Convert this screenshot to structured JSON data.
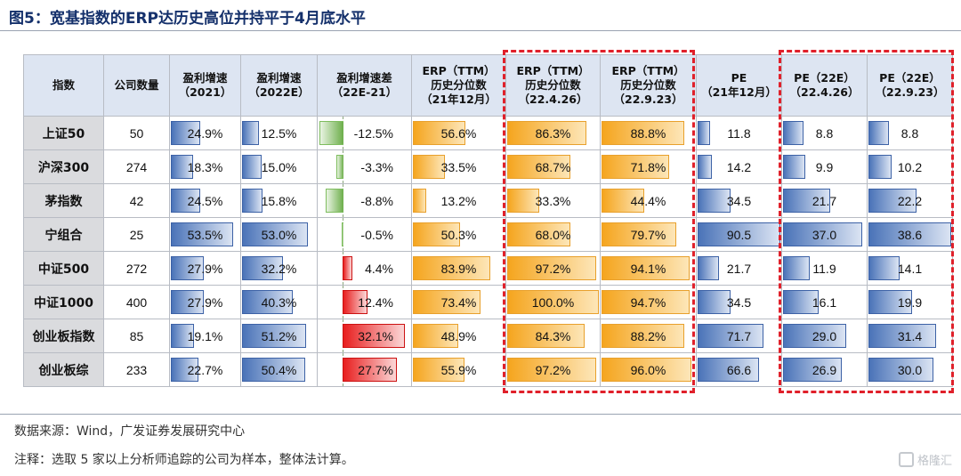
{
  "title": "图5：宽基指数的ERP达历史高位并持平于4月底水平",
  "source": "数据来源：Wind，广发证券发展研究中心",
  "footnote": "注释：选取 5 家以上分析师追踪的公司为样本，整体法计算。",
  "watermark": "格隆汇",
  "colors": {
    "title": "#14306b",
    "blue_bar": "#4a73b8",
    "orange_bar": "#f5a51e",
    "red_bar": "#e81e1e",
    "green_bar": "#6cae4a",
    "highlight_box": "#e0202a",
    "header_bg": "#dde5f2",
    "index_bg": "#dadbde"
  },
  "chart_data": {
    "type": "table",
    "columns": [
      {
        "key": "index",
        "label": [
          "指数"
        ]
      },
      {
        "key": "count",
        "label": [
          "公司数量"
        ]
      },
      {
        "key": "g2021",
        "label": [
          "盈利增速",
          "（2021）"
        ],
        "bar": "blue",
        "max": 60
      },
      {
        "key": "g2022",
        "label": [
          "盈利增速",
          "（2022E）"
        ],
        "bar": "blue",
        "max": 60
      },
      {
        "key": "gdiff",
        "label": [
          "盈利增速差",
          "（22E-21）"
        ],
        "bar": "diverging",
        "max": 35
      },
      {
        "key": "erp_2112",
        "label": [
          "ERP（TTM）",
          "历史分位数",
          "（21年12月）"
        ],
        "bar": "orange",
        "max": 100
      },
      {
        "key": "erp_2204",
        "label": [
          "ERP（TTM）",
          "历史分位数",
          "（22.4.26）"
        ],
        "bar": "orange",
        "max": 100
      },
      {
        "key": "erp_2209",
        "label": [
          "ERP（TTM）",
          "历史分位数",
          "（22.9.23）"
        ],
        "bar": "orange",
        "max": 100
      },
      {
        "key": "pe_2112",
        "label": [
          "PE",
          "（21年12月）"
        ],
        "bar": "blue",
        "max": 90.5
      },
      {
        "key": "pe_2204",
        "label": [
          "PE（22E）",
          "（22.4.26）"
        ],
        "bar": "blue",
        "max": 38.6
      },
      {
        "key": "pe_2209",
        "label": [
          "PE（22E）",
          "（22.9.23）"
        ],
        "bar": "blue",
        "max": 38.6
      }
    ],
    "rows": [
      {
        "index": "上证50",
        "count": 50,
        "g2021": 24.9,
        "g2022": 12.5,
        "gdiff": -12.5,
        "erp_2112": 56.6,
        "erp_2204": 86.3,
        "erp_2209": 88.8,
        "pe_2112": 11.8,
        "pe_2204": 8.8,
        "pe_2209": 8.8
      },
      {
        "index": "沪深300",
        "count": 274,
        "g2021": 18.3,
        "g2022": 15.0,
        "gdiff": -3.3,
        "erp_2112": 33.5,
        "erp_2204": 68.7,
        "erp_2209": 71.8,
        "pe_2112": 14.2,
        "pe_2204": 9.9,
        "pe_2209": 10.2
      },
      {
        "index": "茅指数",
        "count": 42,
        "g2021": 24.5,
        "g2022": 15.8,
        "gdiff": -8.8,
        "erp_2112": 13.2,
        "erp_2204": 33.3,
        "erp_2209": 44.4,
        "pe_2112": 34.5,
        "pe_2204": 21.7,
        "pe_2209": 22.2
      },
      {
        "index": "宁组合",
        "count": 25,
        "g2021": 53.5,
        "g2022": 53.0,
        "gdiff": -0.5,
        "erp_2112": 50.3,
        "erp_2204": 68.0,
        "erp_2209": 79.7,
        "pe_2112": 90.5,
        "pe_2204": 37.0,
        "pe_2209": 38.6
      },
      {
        "index": "中证500",
        "count": 272,
        "g2021": 27.9,
        "g2022": 32.2,
        "gdiff": 4.4,
        "erp_2112": 83.9,
        "erp_2204": 97.2,
        "erp_2209": 94.1,
        "pe_2112": 21.7,
        "pe_2204": 11.9,
        "pe_2209": 14.1
      },
      {
        "index": "中证1000",
        "count": 400,
        "g2021": 27.9,
        "g2022": 40.3,
        "gdiff": 12.4,
        "erp_2112": 73.4,
        "erp_2204": 100.0,
        "erp_2209": 94.7,
        "pe_2112": 34.5,
        "pe_2204": 16.1,
        "pe_2209": 19.9
      },
      {
        "index": "创业板指数",
        "count": 85,
        "g2021": 19.1,
        "g2022": 51.2,
        "gdiff": 32.1,
        "erp_2112": 48.9,
        "erp_2204": 84.3,
        "erp_2209": 88.2,
        "pe_2112": 71.7,
        "pe_2204": 29.0,
        "pe_2209": 31.4
      },
      {
        "index": "创业板综",
        "count": 233,
        "g2021": 22.7,
        "g2022": 50.4,
        "gdiff": 27.7,
        "erp_2112": 55.9,
        "erp_2204": 97.2,
        "erp_2209": 96.0,
        "pe_2112": 66.6,
        "pe_2204": 26.9,
        "pe_2209": 30.0
      }
    ],
    "highlighted_groups": [
      [
        "erp_2204",
        "erp_2209"
      ],
      [
        "pe_2204",
        "pe_2209"
      ]
    ]
  }
}
